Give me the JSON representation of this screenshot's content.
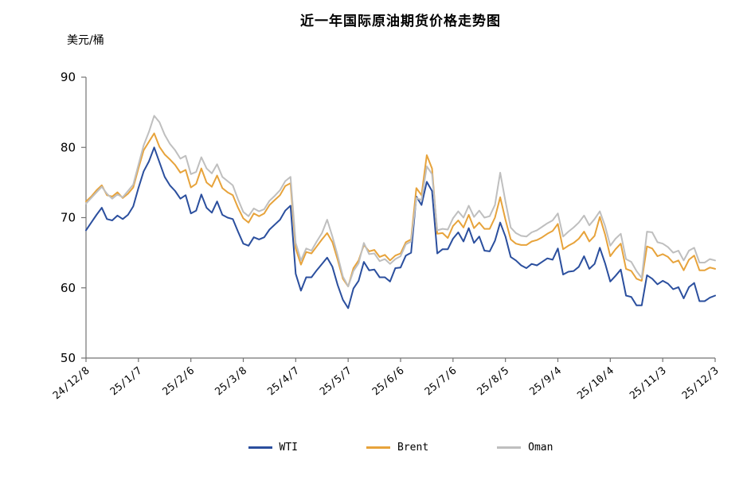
{
  "chart_data": {
    "type": "line",
    "title": "近一年国际原油期货价格走势图",
    "ylabel": "美元/桶",
    "ylim": [
      50,
      90
    ],
    "y_ticks": [
      50,
      60,
      70,
      80,
      90
    ],
    "x_tick_labels": [
      "24/12/8",
      "25/1/7",
      "25/2/6",
      "25/3/8",
      "25/4/7",
      "25/5/7",
      "25/6/6",
      "25/7/6",
      "25/8/5",
      "25/9/4",
      "25/10/4",
      "25/11/3",
      "25/12/3"
    ],
    "x_tick_step_days": 30,
    "x_step_days": 3,
    "x_max_days": 360,
    "grid": false,
    "legend_position": "bottom",
    "axis_color": "#737373",
    "text_color": "#000000",
    "series": [
      {
        "key": "wti",
        "name": "WTI",
        "color": "#2B4F9E",
        "values": [
          68.2,
          69.3,
          70.4,
          71.4,
          69.8,
          69.6,
          70.3,
          69.8,
          70.4,
          71.6,
          74.2,
          76.6,
          78.0,
          80.0,
          77.9,
          75.8,
          74.6,
          73.8,
          72.7,
          73.2,
          70.6,
          71.0,
          73.3,
          71.4,
          70.7,
          72.3,
          70.4,
          70.0,
          69.8,
          68.0,
          66.3,
          66.0,
          67.2,
          66.9,
          67.2,
          68.3,
          69.0,
          69.7,
          71.0,
          71.7,
          62.0,
          59.6,
          61.5,
          61.5,
          62.5,
          63.4,
          64.3,
          63.0,
          60.4,
          58.3,
          57.1,
          59.9,
          61.0,
          63.7,
          62.5,
          62.6,
          61.5,
          61.5,
          60.9,
          62.8,
          62.9,
          64.6,
          65.0,
          73.0,
          71.8,
          75.1,
          73.8,
          64.9,
          65.5,
          65.5,
          67.0,
          67.9,
          66.6,
          68.5,
          66.4,
          67.3,
          65.3,
          65.2,
          66.7,
          69.3,
          67.3,
          64.4,
          63.9,
          63.2,
          62.8,
          63.4,
          63.2,
          63.7,
          64.2,
          64.0,
          65.6,
          61.9,
          62.3,
          62.4,
          63.0,
          64.5,
          62.7,
          63.4,
          65.7,
          63.5,
          60.9,
          61.7,
          62.6,
          58.9,
          58.7,
          57.5,
          57.5,
          61.8,
          61.3,
          60.5,
          61.0,
          60.6,
          59.8,
          60.1,
          58.5,
          60.1,
          60.7,
          58.1,
          58.1,
          58.6,
          58.9
        ]
      },
      {
        "key": "brent",
        "name": "Brent",
        "color": "#E7A33B",
        "values": [
          72.3,
          73.0,
          73.9,
          74.6,
          73.2,
          73.0,
          73.6,
          72.8,
          73.4,
          74.3,
          77.0,
          79.6,
          80.8,
          82.0,
          80.1,
          79.0,
          78.3,
          77.5,
          76.4,
          76.8,
          74.3,
          74.8,
          77.0,
          75.0,
          74.4,
          76.0,
          74.2,
          73.6,
          73.2,
          71.4,
          69.9,
          69.3,
          70.6,
          70.2,
          70.6,
          71.8,
          72.5,
          73.2,
          74.5,
          74.9,
          65.6,
          63.3,
          65.1,
          64.9,
          65.9,
          66.9,
          67.8,
          66.5,
          64.0,
          61.3,
          60.2,
          62.8,
          63.9,
          66.1,
          65.2,
          65.4,
          64.4,
          64.7,
          63.9,
          64.6,
          64.9,
          66.5,
          66.9,
          74.2,
          73.2,
          78.9,
          77.0,
          67.7,
          67.8,
          67.1,
          68.8,
          69.6,
          68.6,
          70.4,
          68.5,
          69.3,
          68.4,
          68.4,
          70.0,
          72.9,
          69.7,
          66.9,
          66.3,
          66.1,
          66.1,
          66.6,
          66.8,
          67.2,
          67.7,
          68.1,
          69.1,
          65.5,
          66.0,
          66.4,
          67.0,
          68.0,
          66.6,
          67.4,
          70.1,
          67.6,
          64.5,
          65.5,
          66.3,
          62.7,
          62.4,
          61.3,
          61.0,
          65.9,
          65.6,
          64.5,
          64.8,
          64.4,
          63.6,
          63.9,
          62.5,
          64.0,
          64.6,
          62.5,
          62.5,
          62.9,
          62.7
        ]
      },
      {
        "key": "oman",
        "name": "Oman",
        "color": "#BFBFBF",
        "values": [
          72.0,
          72.8,
          73.6,
          74.4,
          73.4,
          72.7,
          73.3,
          72.9,
          73.8,
          74.7,
          77.5,
          80.3,
          82.2,
          84.5,
          83.6,
          81.8,
          80.5,
          79.6,
          78.4,
          78.8,
          76.2,
          76.5,
          78.6,
          77.0,
          76.3,
          77.6,
          75.8,
          75.2,
          74.6,
          72.6,
          70.8,
          70.2,
          71.3,
          70.9,
          71.2,
          72.4,
          73.1,
          73.9,
          75.2,
          75.8,
          66.4,
          63.9,
          65.6,
          65.3,
          66.6,
          67.8,
          69.7,
          67.3,
          64.6,
          61.6,
          60.2,
          62.4,
          63.5,
          66.4,
          64.8,
          64.9,
          63.8,
          64.1,
          63.4,
          64.1,
          64.5,
          66.2,
          66.6,
          72.8,
          72.5,
          77.3,
          76.2,
          68.2,
          68.4,
          68.3,
          69.9,
          70.9,
          70.0,
          71.7,
          70.1,
          71.0,
          70.0,
          70.2,
          71.8,
          76.4,
          72.3,
          68.6,
          67.8,
          67.4,
          67.3,
          67.9,
          68.2,
          68.7,
          69.2,
          69.6,
          70.6,
          67.3,
          68.0,
          68.6,
          69.3,
          70.3,
          68.9,
          69.8,
          70.9,
          68.8,
          66.0,
          67.0,
          67.7,
          64.1,
          63.7,
          62.4,
          61.4,
          68.0,
          67.9,
          66.5,
          66.3,
          65.8,
          65.0,
          65.3,
          63.9,
          65.3,
          65.7,
          63.6,
          63.6,
          64.1,
          63.9
        ]
      }
    ]
  }
}
